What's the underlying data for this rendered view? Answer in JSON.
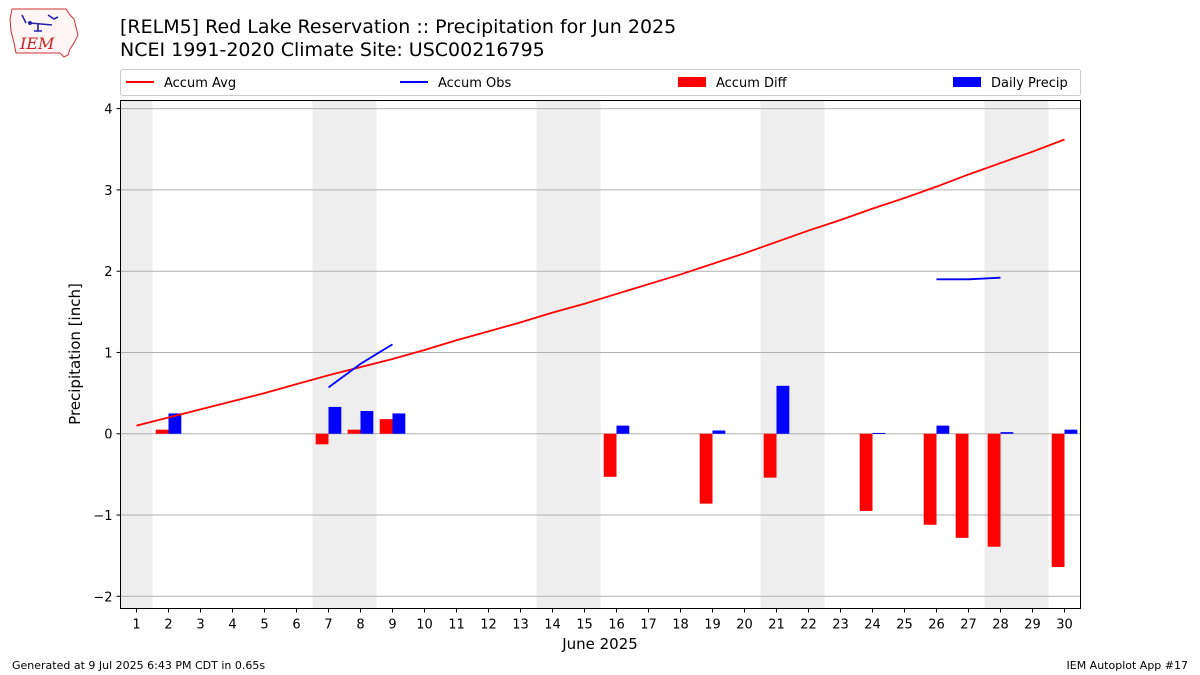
{
  "header": {
    "title_line1": "[RELM5] Red Lake Reservation :: Precipitation for Jun 2025",
    "title_line2": "NCEI 1991-2020 Climate Site: USC00216795",
    "logo_text": "IEM"
  },
  "footer": {
    "left": "Generated at 9 Jul 2025 6:43 PM CDT in 0.65s",
    "right": "IEM Autoplot App #17"
  },
  "colors": {
    "accum_avg": "#ff0000",
    "accum_obs": "#0000ff",
    "accum_diff": "#ff0000",
    "daily_precip": "#0000ff",
    "weekend_shade": "#eeeeee",
    "grid": "#b0b0b0"
  },
  "chart_data": {
    "type": "bar",
    "xlabel": "June 2025",
    "ylabel": "Precipitation [inch]",
    "xlim": [
      0.5,
      30.5
    ],
    "ylim": [
      -2.15,
      4.1
    ],
    "yticks": [
      -2,
      -1,
      0,
      1,
      2,
      3,
      4
    ],
    "days": [
      1,
      2,
      3,
      4,
      5,
      6,
      7,
      8,
      9,
      10,
      11,
      12,
      13,
      14,
      15,
      16,
      17,
      18,
      19,
      20,
      21,
      22,
      23,
      24,
      25,
      26,
      27,
      28,
      29,
      30
    ],
    "weekend_days": [
      1,
      7,
      8,
      14,
      15,
      21,
      22,
      28,
      29
    ],
    "grid": "horizontal",
    "legend": {
      "position": "top",
      "entries": [
        {
          "label": "Accum Avg",
          "kind": "line",
          "series": "accum_avg"
        },
        {
          "label": "Accum Obs",
          "kind": "line",
          "series": "accum_obs"
        },
        {
          "label": "Accum Diff",
          "kind": "bar",
          "series": "accum_diff"
        },
        {
          "label": "Daily Precip",
          "kind": "bar",
          "series": "daily_precip"
        }
      ]
    },
    "series": [
      {
        "name": "Accum Avg",
        "key": "accum_avg",
        "type": "line",
        "x": [
          1,
          2,
          3,
          4,
          5,
          6,
          7,
          8,
          9,
          10,
          11,
          12,
          13,
          14,
          15,
          16,
          17,
          18,
          19,
          20,
          21,
          22,
          23,
          24,
          25,
          26,
          27,
          28,
          29,
          30
        ],
        "values": [
          0.1,
          0.2,
          0.3,
          0.4,
          0.5,
          0.61,
          0.72,
          0.82,
          0.92,
          1.03,
          1.15,
          1.26,
          1.37,
          1.49,
          1.6,
          1.72,
          1.84,
          1.96,
          2.09,
          2.22,
          2.36,
          2.5,
          2.63,
          2.77,
          2.9,
          3.04,
          3.19,
          3.33,
          3.47,
          3.62
        ]
      },
      {
        "name": "Accum Obs",
        "key": "accum_obs",
        "type": "line",
        "segments": [
          {
            "x": [
              7,
              8,
              9
            ],
            "values": [
              0.57,
              0.86,
              1.1
            ]
          },
          {
            "x": [
              26,
              27,
              28
            ],
            "values": [
              1.9,
              1.9,
              1.92
            ]
          }
        ]
      },
      {
        "name": "Accum Diff",
        "key": "accum_diff",
        "type": "bar",
        "offset": -0.2,
        "x": [
          2,
          7,
          8,
          9,
          16,
          19,
          21,
          24,
          26,
          27,
          28,
          30
        ],
        "values": [
          0.05,
          -0.13,
          0.05,
          0.18,
          -0.53,
          -0.86,
          -0.54,
          -0.95,
          -1.12,
          -1.28,
          -1.39,
          -1.64
        ]
      },
      {
        "name": "Daily Precip",
        "key": "daily_precip",
        "type": "bar",
        "offset": 0.2,
        "x": [
          2,
          7,
          8,
          9,
          16,
          19,
          21,
          24,
          26,
          28,
          30
        ],
        "values": [
          0.25,
          0.33,
          0.28,
          0.25,
          0.1,
          0.04,
          0.59,
          0.01,
          0.1,
          0.02,
          0.05
        ]
      }
    ]
  }
}
